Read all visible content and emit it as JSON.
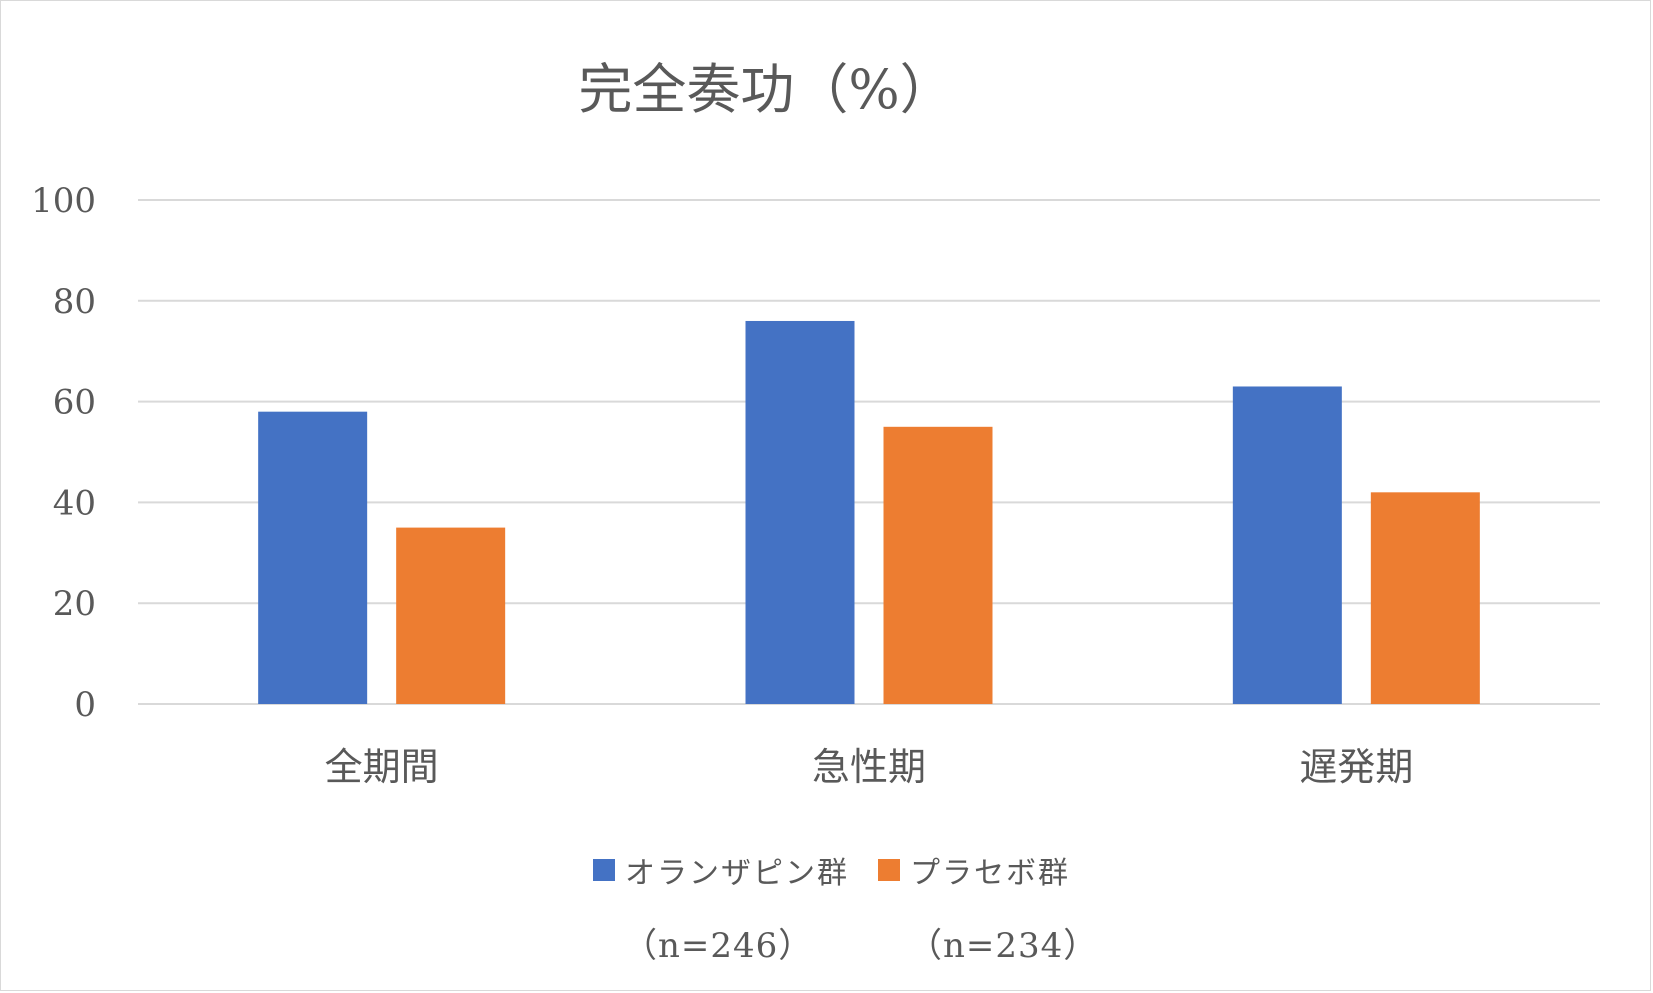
{
  "chart_data": {
    "type": "bar",
    "title": "完全奏功（%）",
    "categories": [
      "全期間",
      "急性期",
      "遅発期"
    ],
    "series": [
      {
        "name": "オランザピン群",
        "n_label": "（n=246）",
        "color": "#4472C4",
        "values": [
          58,
          76,
          63
        ]
      },
      {
        "name": "プラセボ群",
        "n_label": "（n=234）",
        "color": "#ED7D31",
        "values": [
          35,
          55,
          42
        ]
      }
    ],
    "ylim": [
      0,
      100
    ],
    "yticks": [
      "0",
      "20",
      "40",
      "60",
      "80",
      "100"
    ],
    "grid": true,
    "legend_position": "bottom"
  }
}
